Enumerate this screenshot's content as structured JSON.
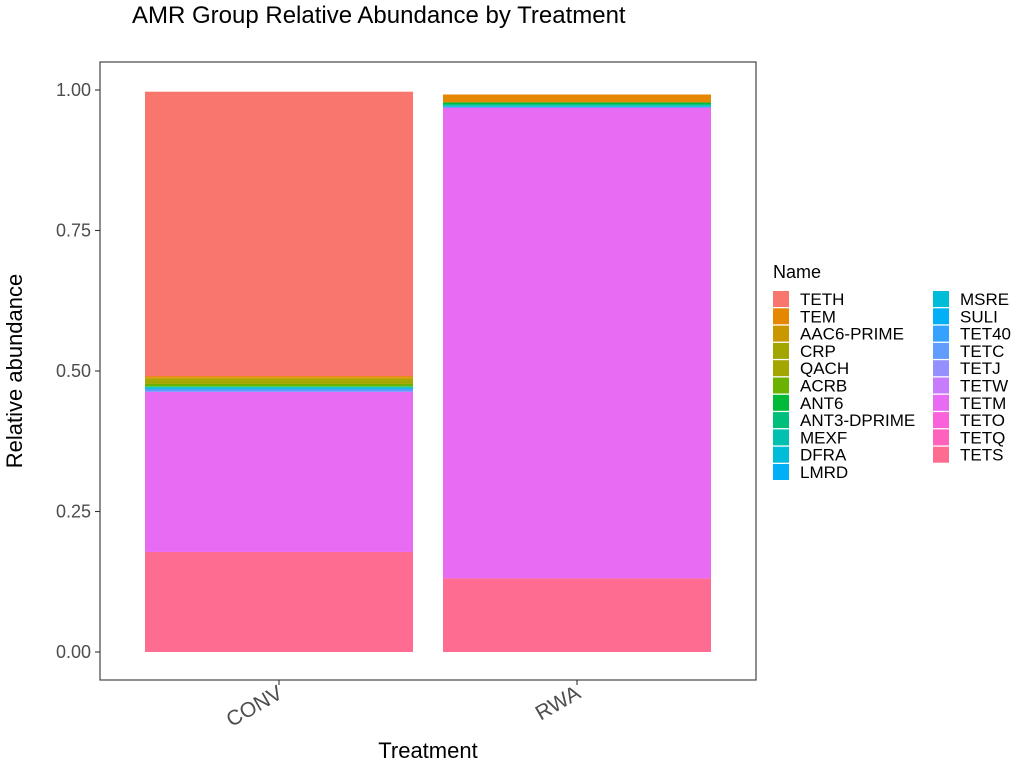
{
  "chart_data": {
    "type": "bar",
    "stacked": true,
    "title": "AMR Group Relative Abundance by Treatment",
    "xlabel": "Treatment",
    "ylabel": "Relative abundance",
    "ylim": [
      0,
      1.0
    ],
    "yticks": [
      "0.00",
      "0.25",
      "0.50",
      "0.75",
      "1.00"
    ],
    "categories": [
      "CONV",
      "RWA"
    ],
    "legend_title": "Name",
    "legend_position": "right",
    "grid": false,
    "series": [
      {
        "name": "TETH",
        "color": "#F8766D",
        "values": [
          0.506,
          0.0
        ]
      },
      {
        "name": "TEM",
        "color": "#E58700",
        "values": [
          0.003,
          0.014
        ]
      },
      {
        "name": "AAC6-PRIME",
        "color": "#C99800",
        "values": [
          0.002,
          0.0
        ]
      },
      {
        "name": "CRP",
        "color": "#A3A500",
        "values": [
          0.003,
          0.0
        ]
      },
      {
        "name": "QACH",
        "color": "#A3A500",
        "values": [
          0.006,
          0.0
        ]
      },
      {
        "name": "ACRB",
        "color": "#6BB100",
        "values": [
          0.004,
          0.0
        ]
      },
      {
        "name": "ANT6",
        "color": "#00BA38",
        "values": [
          0.001,
          0.003
        ]
      },
      {
        "name": "ANT3-DPRIME",
        "color": "#00BF7D",
        "values": [
          0.0,
          0.002
        ]
      },
      {
        "name": "MEXF",
        "color": "#00C0AF",
        "values": [
          0.002,
          0.002
        ]
      },
      {
        "name": "DFRA",
        "color": "#00BCD8",
        "values": [
          0.0,
          0.0
        ]
      },
      {
        "name": "LMRD",
        "color": "#00B0F6",
        "values": [
          0.0,
          0.002
        ]
      },
      {
        "name": "MSRE",
        "color": "#00BCD8",
        "values": [
          0.001,
          0.0
        ]
      },
      {
        "name": "SULI",
        "color": "#00B0F6",
        "values": [
          0.001,
          0.0
        ]
      },
      {
        "name": "TET40",
        "color": "#35A2FF",
        "values": [
          0.001,
          0.0
        ]
      },
      {
        "name": "TETC",
        "color": "#619CFF",
        "values": [
          0.004,
          0.0
        ]
      },
      {
        "name": "TETJ",
        "color": "#9590FF",
        "values": [
          0.0,
          0.0
        ]
      },
      {
        "name": "TETW",
        "color": "#C77CFF",
        "values": [
          0.0,
          0.0
        ]
      },
      {
        "name": "TETM",
        "color": "#E76BF3",
        "values": [
          0.285,
          0.838
        ]
      },
      {
        "name": "TETO",
        "color": "#FA62DB",
        "values": [
          0.0,
          0.0
        ]
      },
      {
        "name": "TETQ",
        "color": "#FF62BC",
        "values": [
          0.0,
          0.0
        ]
      },
      {
        "name": "TETS",
        "color": "#FF6C91",
        "values": [
          0.178,
          0.131
        ]
      }
    ]
  }
}
